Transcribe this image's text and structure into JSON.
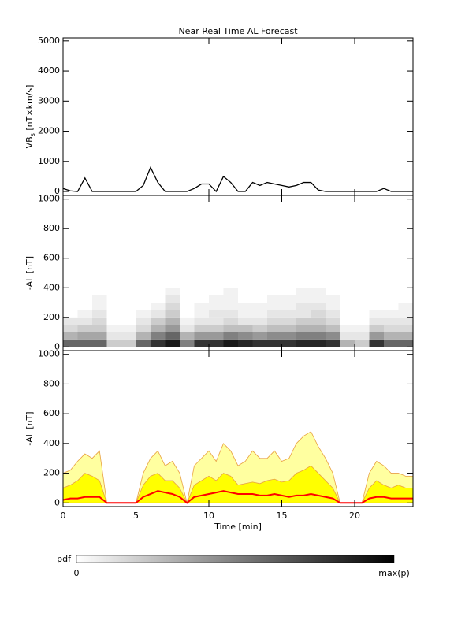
{
  "chart_data": [
    {
      "type": "line",
      "title": "Near Real Time AL Forecast",
      "ylabel": [
        "VB",
        "s",
        " [nT×km/s]"
      ],
      "x": [
        0,
        0.5,
        1,
        1.5,
        2,
        2.5,
        3,
        3.5,
        4,
        4.5,
        5,
        5.5,
        6,
        6.5,
        7,
        7.5,
        8,
        8.5,
        9,
        9.5,
        10,
        10.5,
        11,
        11.5,
        12,
        12.5,
        13,
        13.5,
        14,
        14.5,
        15,
        15.5,
        16,
        16.5,
        17,
        17.5,
        18,
        18.5,
        19,
        19.5,
        20,
        20.5,
        21,
        21.5,
        22,
        22.5,
        23,
        23.5,
        24
      ],
      "series": [
        {
          "color": "#000000",
          "values": [
            100,
            20,
            0,
            450,
            0,
            0,
            0,
            0,
            0,
            0,
            0,
            200,
            800,
            300,
            0,
            0,
            0,
            0,
            100,
            250,
            250,
            0,
            500,
            300,
            0,
            0,
            300,
            200,
            300,
            250,
            200,
            150,
            200,
            300,
            300,
            50,
            0,
            0,
            0,
            0,
            0,
            0,
            0,
            0,
            100,
            0,
            0,
            0,
            0
          ]
        }
      ],
      "xlim": [
        0,
        24
      ],
      "ylim": [
        -130,
        5100
      ],
      "yticks": [
        0,
        1000,
        2000,
        3000,
        4000,
        5000
      ]
    },
    {
      "type": "heatmap",
      "ylabel": "-AL [nT]",
      "xbins": [
        0,
        1,
        2,
        3,
        4,
        5,
        6,
        7,
        8,
        9,
        10,
        11,
        12,
        13,
        14,
        15,
        16,
        17,
        18,
        19,
        20,
        21,
        22,
        23,
        24
      ],
      "ybins": [
        0,
        50,
        100,
        150,
        200,
        250,
        300,
        350,
        400
      ],
      "z": [
        [
          0.6,
          0.3,
          0.15,
          0.1,
          0,
          0,
          0,
          0
        ],
        [
          0.6,
          0.35,
          0.2,
          0.1,
          0.05,
          0,
          0,
          0
        ],
        [
          0.6,
          0.35,
          0.2,
          0.15,
          0.1,
          0.05,
          0.05,
          0
        ],
        [
          0.2,
          0.1,
          0.05,
          0,
          0,
          0,
          0,
          0
        ],
        [
          0.2,
          0.1,
          0.05,
          0,
          0,
          0,
          0,
          0
        ],
        [
          0.6,
          0.3,
          0.15,
          0.1,
          0.05,
          0,
          0,
          0
        ],
        [
          0.8,
          0.5,
          0.3,
          0.2,
          0.1,
          0.05,
          0,
          0
        ],
        [
          0.9,
          0.6,
          0.4,
          0.3,
          0.2,
          0.15,
          0.1,
          0.05
        ],
        [
          0.5,
          0.3,
          0.1,
          0.05,
          0,
          0,
          0,
          0
        ],
        [
          0.8,
          0.4,
          0.2,
          0.1,
          0.05,
          0.05,
          0,
          0
        ],
        [
          0.8,
          0.4,
          0.2,
          0.1,
          0.1,
          0.05,
          0.05,
          0
        ],
        [
          0.9,
          0.5,
          0.25,
          0.15,
          0.1,
          0.05,
          0.05,
          0.05
        ],
        [
          0.85,
          0.45,
          0.25,
          0.1,
          0.05,
          0.05,
          0,
          0
        ],
        [
          0.8,
          0.4,
          0.2,
          0.1,
          0.05,
          0.05,
          0,
          0
        ],
        [
          0.8,
          0.45,
          0.25,
          0.15,
          0.1,
          0.05,
          0.05,
          0
        ],
        [
          0.8,
          0.45,
          0.25,
          0.15,
          0.1,
          0.05,
          0.05,
          0
        ],
        [
          0.85,
          0.5,
          0.3,
          0.2,
          0.1,
          0.1,
          0.05,
          0.05
        ],
        [
          0.85,
          0.5,
          0.3,
          0.2,
          0.15,
          0.1,
          0.05,
          0.05
        ],
        [
          0.8,
          0.45,
          0.25,
          0.15,
          0.1,
          0.05,
          0.05,
          0
        ],
        [
          0.3,
          0.1,
          0.05,
          0,
          0,
          0,
          0,
          0
        ],
        [
          0.2,
          0.1,
          0.05,
          0,
          0,
          0,
          0,
          0
        ],
        [
          0.8,
          0.4,
          0.2,
          0.1,
          0.05,
          0,
          0,
          0
        ],
        [
          0.6,
          0.3,
          0.15,
          0.1,
          0.05,
          0,
          0,
          0
        ],
        [
          0.6,
          0.3,
          0.15,
          0.1,
          0.05,
          0.05,
          0,
          0
        ]
      ],
      "xlim": [
        0,
        24
      ],
      "ylim": [
        -25,
        1025
      ],
      "yticks": [
        0,
        200,
        400,
        600,
        800,
        1000
      ],
      "colorbar": {
        "label": "pdf",
        "min_label": "0",
        "max_label": "max(p)"
      }
    },
    {
      "type": "area",
      "ylabel": "-AL [nT]",
      "xlabel": "Time [min]",
      "x": [
        0,
        0.5,
        1,
        1.5,
        2,
        2.5,
        3,
        3.5,
        4,
        4.5,
        5,
        5.5,
        6,
        6.5,
        7,
        7.5,
        8,
        8.5,
        9,
        9.5,
        10,
        10.5,
        11,
        11.5,
        12,
        12.5,
        13,
        13.5,
        14,
        14.5,
        15,
        15.5,
        16,
        16.5,
        17,
        17.5,
        18,
        18.5,
        19,
        19.5,
        20,
        20.5,
        21,
        21.5,
        22,
        22.5,
        23,
        23.5,
        24
      ],
      "series": [
        {
          "color": "#ffffa0",
          "line_color": "#e8a040",
          "values": [
            200,
            220,
            280,
            330,
            300,
            350,
            0,
            0,
            0,
            0,
            0,
            200,
            300,
            350,
            250,
            280,
            200,
            0,
            250,
            300,
            350,
            280,
            400,
            350,
            250,
            280,
            350,
            300,
            300,
            350,
            280,
            300,
            400,
            450,
            480,
            380,
            300,
            200,
            0,
            0,
            0,
            0,
            200,
            280,
            250,
            200,
            200,
            180,
            180
          ]
        },
        {
          "color": "#ffff00",
          "line_color": "#e8a040",
          "values": [
            100,
            120,
            150,
            200,
            180,
            150,
            0,
            0,
            0,
            0,
            0,
            120,
            180,
            200,
            150,
            150,
            100,
            0,
            120,
            150,
            180,
            150,
            200,
            180,
            120,
            130,
            140,
            130,
            150,
            160,
            140,
            150,
            200,
            220,
            250,
            200,
            150,
            100,
            0,
            0,
            0,
            0,
            100,
            150,
            120,
            100,
            120,
            100,
            100
          ]
        },
        {
          "color": "#ff0000",
          "values": [
            20,
            30,
            30,
            40,
            40,
            40,
            0,
            0,
            0,
            0,
            0,
            40,
            60,
            80,
            70,
            60,
            40,
            0,
            40,
            50,
            60,
            70,
            80,
            70,
            60,
            60,
            60,
            50,
            50,
            60,
            50,
            40,
            50,
            50,
            60,
            50,
            40,
            30,
            0,
            0,
            0,
            0,
            30,
            40,
            40,
            30,
            30,
            30,
            30
          ]
        }
      ],
      "xlim": [
        0,
        24
      ],
      "ylim": [
        -25,
        1025
      ],
      "yticks": [
        0,
        200,
        400,
        600,
        800,
        1000
      ],
      "xticks": [
        0,
        5,
        10,
        15,
        20
      ]
    }
  ]
}
